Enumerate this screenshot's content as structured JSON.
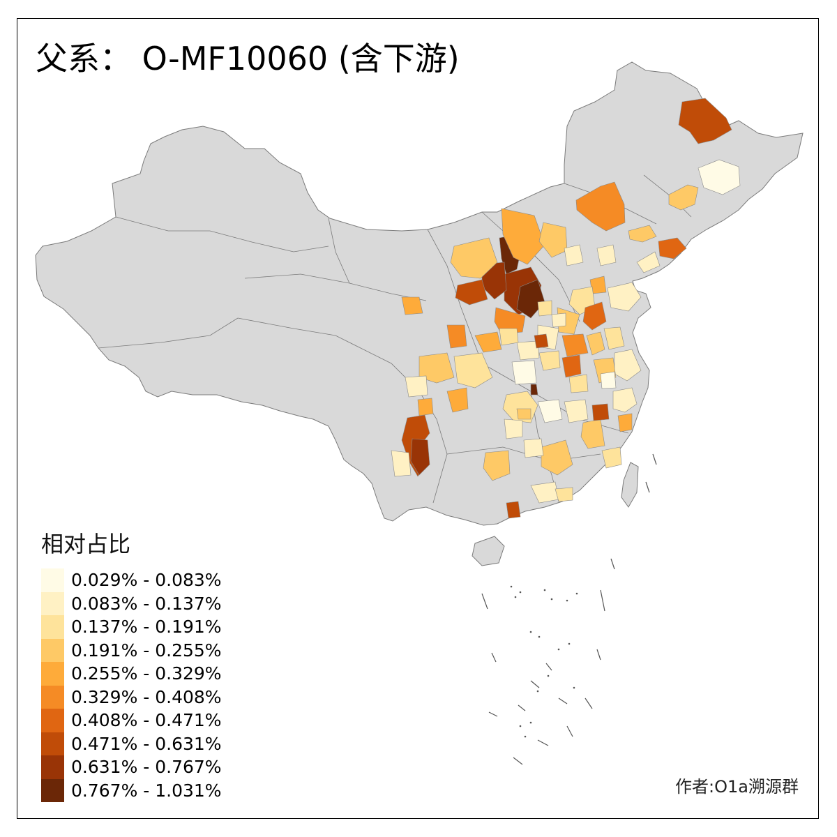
{
  "title": "父系： O-MF10060 (含下游)",
  "author": "作者:O1a溯源群",
  "legend": {
    "title": "相对占比",
    "items": [
      {
        "label": "0.029% - 0.083%",
        "color": "#fffbe6"
      },
      {
        "label": "0.083% - 0.137%",
        "color": "#fff1c4"
      },
      {
        "label": "0.137% - 0.191%",
        "color": "#fee39b"
      },
      {
        "label": "0.191% - 0.255%",
        "color": "#fec966"
      },
      {
        "label": "0.255% - 0.329%",
        "color": "#feab3a"
      },
      {
        "label": "0.329% - 0.408%",
        "color": "#f58b25"
      },
      {
        "label": "0.408% - 0.471%",
        "color": "#e06612"
      },
      {
        "label": "0.471% - 0.631%",
        "color": "#c04c08"
      },
      {
        "label": "0.631% - 0.767%",
        "color": "#993406"
      },
      {
        "label": "0.767% - 1.031%",
        "color": "#6b2707"
      }
    ]
  },
  "map_colors": {
    "land": "#d9d9d9",
    "border": "#7a7a7a",
    "sea": "#ffffff"
  }
}
